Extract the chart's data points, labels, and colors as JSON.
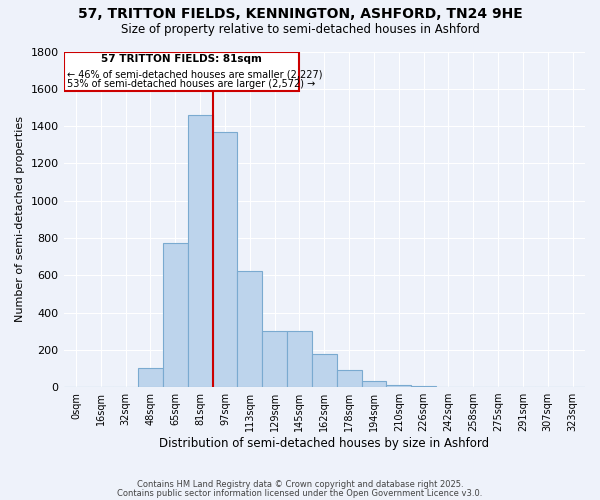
{
  "title": "57, TRITTON FIELDS, KENNINGTON, ASHFORD, TN24 9HE",
  "subtitle": "Size of property relative to semi-detached houses in Ashford",
  "xlabel": "Distribution of semi-detached houses by size in Ashford",
  "ylabel": "Number of semi-detached properties",
  "bar_labels": [
    "0sqm",
    "16sqm",
    "32sqm",
    "48sqm",
    "65sqm",
    "81sqm",
    "97sqm",
    "113sqm",
    "129sqm",
    "145sqm",
    "162sqm",
    "178sqm",
    "194sqm",
    "210sqm",
    "226sqm",
    "242sqm",
    "258sqm",
    "275sqm",
    "291sqm",
    "307sqm",
    "323sqm"
  ],
  "bar_values": [
    0,
    0,
    0,
    100,
    775,
    1460,
    1370,
    620,
    300,
    300,
    175,
    90,
    30,
    10,
    5,
    0,
    0,
    0,
    0,
    0,
    0
  ],
  "property_size_idx": 5,
  "property_label": "57 TRITTON FIELDS: 81sqm",
  "smaller_pct": 46,
  "smaller_count": 2227,
  "larger_pct": 53,
  "larger_count": 2572,
  "bar_color": "#bdd4ec",
  "bar_edge_color": "#7aaad0",
  "line_color": "#cc0000",
  "box_color": "#cc0000",
  "ylim": [
    0,
    1800
  ],
  "yticks": [
    0,
    200,
    400,
    600,
    800,
    1000,
    1200,
    1400,
    1600,
    1800
  ],
  "background_color": "#eef2fa",
  "grid_color": "#ffffff",
  "footer_line1": "Contains HM Land Registry data © Crown copyright and database right 2025.",
  "footer_line2": "Contains public sector information licensed under the Open Government Licence v3.0."
}
